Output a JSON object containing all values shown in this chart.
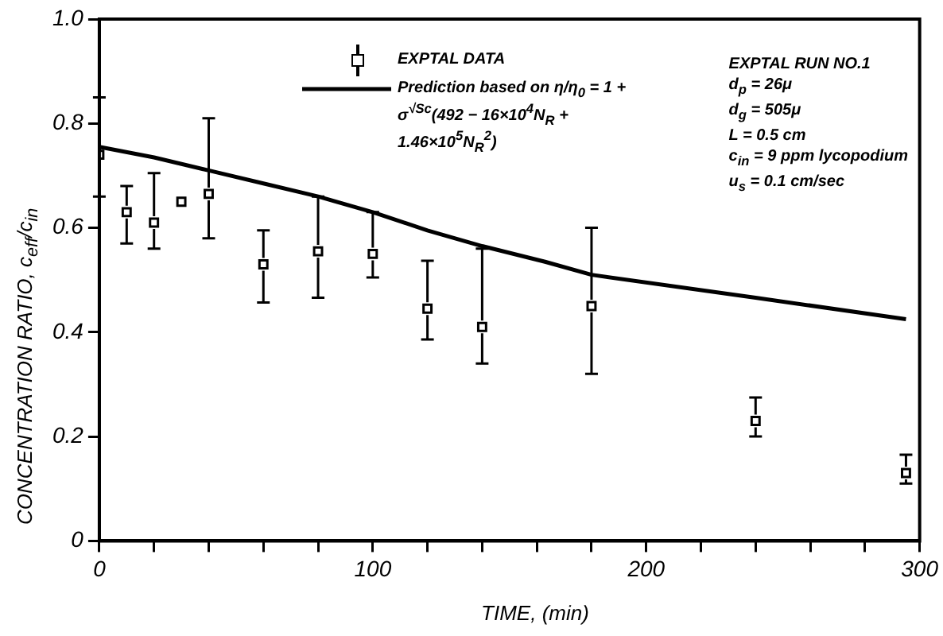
{
  "chart_data": {
    "type": "scatter",
    "xlabel": "TIME, (min)",
    "ylabel": "CONCENTRATION RATIO, c$_{eff}$/c$_{in}$",
    "xlim": [
      0,
      300
    ],
    "ylim": [
      0,
      1.0
    ],
    "xticks": [
      0,
      {
        "value": 20,
        "label": null
      },
      {
        "value": 40,
        "label": null
      },
      {
        "value": 60,
        "label": null
      },
      {
        "value": 80,
        "label": null
      },
      100,
      {
        "value": 120,
        "label": null
      },
      {
        "value": 140,
        "label": null
      },
      {
        "value": 160,
        "label": null
      },
      {
        "value": 180,
        "label": null
      },
      200,
      {
        "value": 220,
        "label": null
      },
      {
        "value": 240,
        "label": null
      },
      {
        "value": 260,
        "label": null
      },
      {
        "value": 280,
        "label": null
      },
      300
    ],
    "yticks": [
      0,
      0.2,
      0.4,
      0.6,
      0.8,
      {
        "value": 1.0,
        "label": "1.0"
      }
    ],
    "grid": false,
    "legend": "top",
    "series": [
      {
        "name": "EXPTAL DATA",
        "marker": "square",
        "color": "#000000",
        "x": [
          0,
          10,
          20,
          30,
          40,
          60,
          80,
          100,
          120,
          140,
          180,
          240,
          295
        ],
        "values": [
          0.74,
          0.63,
          0.61,
          0.65,
          0.665,
          0.53,
          0.555,
          0.55,
          0.445,
          0.41,
          0.45,
          0.23,
          0.13
        ],
        "errors": [
          [
            0.66,
            0.85
          ],
          [
            0.57,
            0.68
          ],
          [
            0.56,
            0.705
          ],
          null,
          [
            0.58,
            0.81
          ],
          [
            0.457,
            0.595
          ],
          [
            0.466,
            0.66
          ],
          [
            0.505,
            0.63
          ],
          [
            0.386,
            0.537
          ],
          [
            0.34,
            0.56
          ],
          [
            0.32,
            0.6
          ],
          [
            0.2,
            0.275
          ],
          [
            0.11,
            0.165
          ]
        ]
      },
      {
        "name": "Prediction based on η/η$_{0}$ = 1 + σ$^{√Sc}$(492 − 16×10$^{4}$N$_{R}$ + 1.46×10$^{5}$N$_{R}$$^{2}$)",
        "type": "line",
        "marker": "none",
        "line_style": "solid",
        "color": "#000000",
        "x": [
          0,
          20,
          40,
          60,
          80,
          100,
          120,
          140,
          163,
          180,
          240,
          295
        ],
        "values": [
          0.755,
          0.735,
          0.71,
          0.685,
          0.66,
          0.63,
          0.595,
          0.565,
          0.535,
          0.51,
          0.466,
          0.425
        ]
      }
    ],
    "annotations": [
      "EXPTAL RUN NO.1",
      "d$_{p}$ = 26μ",
      "d$_{g}$ = 505μ",
      "L = 0.5 cm",
      "c$_{in}$ = 9 ppm lycopodium",
      "u$_{s}$ = 0.1 cm/sec"
    ]
  }
}
